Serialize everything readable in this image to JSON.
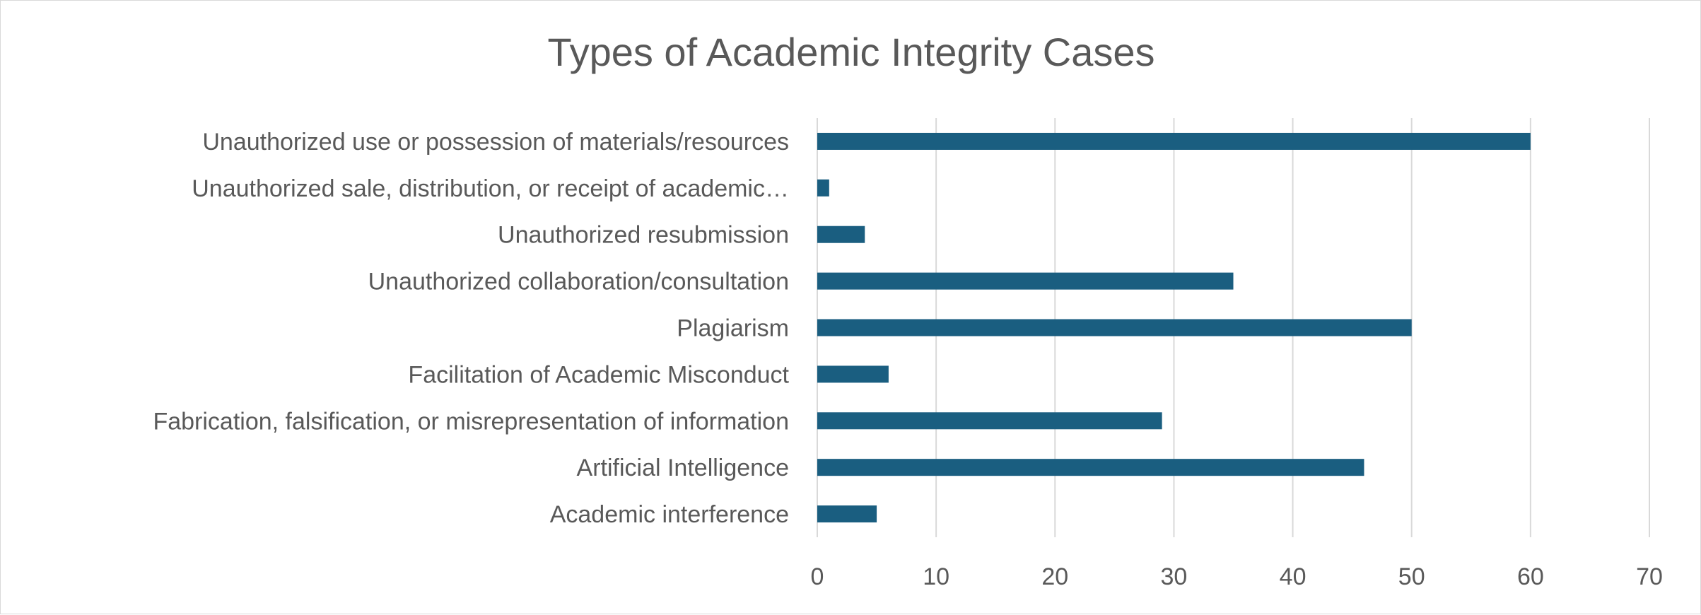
{
  "chart_data": {
    "type": "bar",
    "orientation": "horizontal",
    "title": "Types of Academic Integrity Cases",
    "xlabel": "",
    "ylabel": "",
    "categories": [
      "Academic interference",
      "Artificial Intelligence",
      "Fabrication, falsification, or misrepresentation of information",
      "Facilitation of Academic Misconduct",
      "Plagiarism",
      "Unauthorized collaboration/consultation",
      "Unauthorized resubmission",
      "Unauthorized sale, distribution, or receipt of academic…",
      "Unauthorized use or possession of materials/resources"
    ],
    "values": [
      5,
      46,
      29,
      6,
      50,
      35,
      4,
      1,
      60
    ],
    "xlim": [
      0,
      70
    ],
    "xticks": [
      "0",
      "10",
      "20",
      "30",
      "40",
      "50",
      "60",
      "70"
    ],
    "grid": "vertical",
    "legend": "none",
    "bar_color": "#1a5e80"
  }
}
